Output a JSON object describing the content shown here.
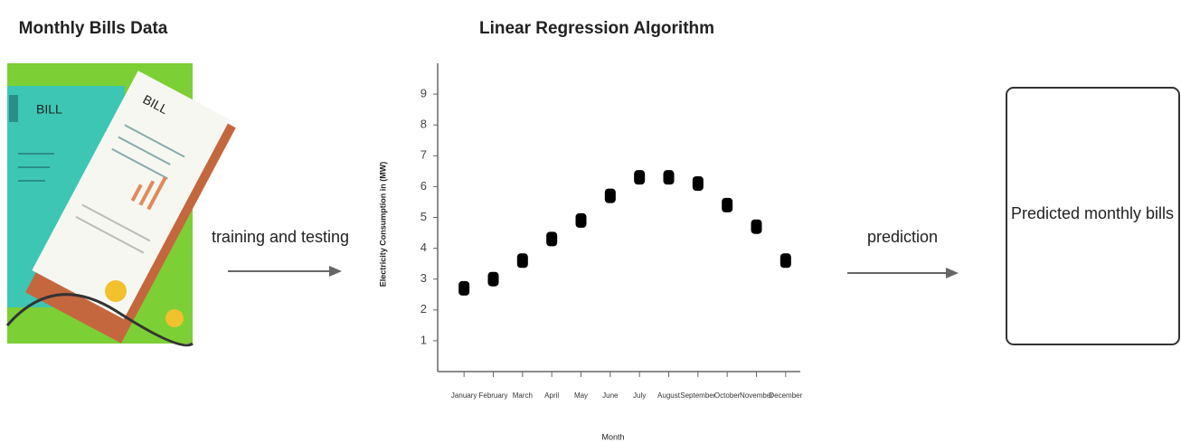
{
  "left_title": "Monthly Bills Data",
  "illustration_labels": [
    "BILL",
    "BILL"
  ],
  "arrow_labels": [
    "training and testing",
    "prediction"
  ],
  "output_box": "Predicted monthly bills",
  "chart_data": {
    "type": "scatter",
    "title": "Linear Regression Algorithm",
    "x_label": "Month",
    "y_label": "Electricity Consumption in (MW)",
    "categories": [
      "January",
      "February",
      "March",
      "April",
      "May",
      "June",
      "July",
      "August",
      "September",
      "October",
      "November",
      "December"
    ],
    "values": [
      2.7,
      3.0,
      3.6,
      4.3,
      4.9,
      5.7,
      6.3,
      6.3,
      6.1,
      5.4,
      4.7,
      3.6
    ],
    "color": "#000000",
    "ylim": [
      0,
      10
    ],
    "yticks": [
      1,
      2,
      3,
      4,
      5,
      6,
      7,
      8,
      9
    ]
  }
}
